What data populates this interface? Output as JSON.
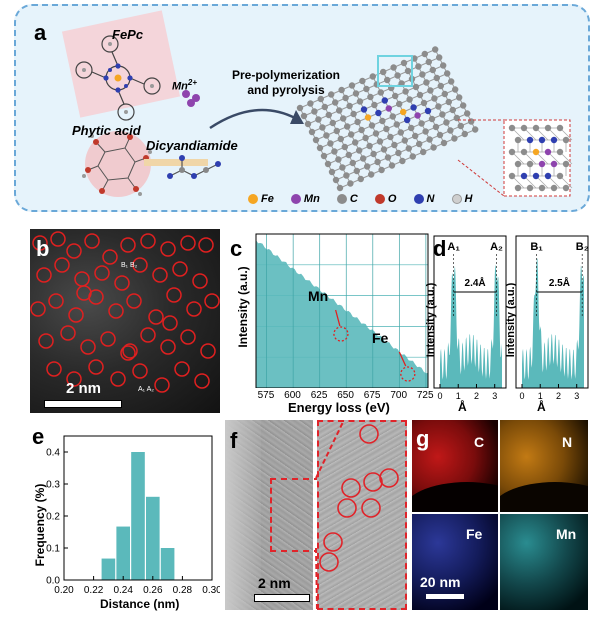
{
  "panel_a": {
    "label": "a",
    "fepc": "FePc",
    "mn": "Mn",
    "mn_sup": "2+",
    "phytic": "Phytic acid",
    "dicy": "Dicyandiamide",
    "process": "Pre-polymerization",
    "process2": "and pyrolysis",
    "legend": [
      {
        "name": "Fe",
        "color": "#f5a623"
      },
      {
        "name": "Mn",
        "color": "#8e44ad"
      },
      {
        "name": "C",
        "color": "#8c8c8c"
      },
      {
        "name": "O",
        "color": "#c0392b"
      },
      {
        "name": "N",
        "color": "#2f3fb0"
      },
      {
        "name": "H",
        "color": "#d9d9d9"
      }
    ]
  },
  "panel_b": {
    "label": "b",
    "scalebar": "2 nm",
    "site_b": "B₁ B₂",
    "site_a": "A₁ A₂"
  },
  "panel_c": {
    "label": "c",
    "ylabel": "Intensity (a.u.)",
    "xlabel": "Energy loss (eV)",
    "mn": "Mn",
    "fe": "Fe"
  },
  "panel_d": {
    "label": "d",
    "ylabel": "Intensity (a.u.)",
    "xlabel": "Å",
    "a1": "A₁",
    "a2": "A₂",
    "b1": "B₁",
    "b2": "B₂",
    "dist_a": "2.4Å",
    "dist_b": "2.5Å"
  },
  "panel_e": {
    "label": "e",
    "ylabel": "Frequency (%)",
    "xlabel": "Distance (nm)"
  },
  "panel_f": {
    "label": "f",
    "scalebar": "2 nm"
  },
  "panel_g": {
    "label": "g",
    "maps": [
      "C",
      "N",
      "Fe",
      "Mn"
    ],
    "scalebar": "20 nm"
  },
  "chart_data": [
    {
      "type": "bar",
      "panel": "e",
      "x": [
        0.23,
        0.24,
        0.25,
        0.26,
        0.27
      ],
      "values": [
        0.067,
        0.167,
        0.4,
        0.26,
        0.1
      ],
      "xlabel": "Distance (nm)",
      "ylabel": "Frequency (%)",
      "xlim": [
        0.2,
        0.3
      ],
      "ylim": [
        0,
        0.45
      ],
      "xticks": [
        "0.20",
        "0.22",
        "0.24",
        "0.26",
        "0.28",
        "0.30"
      ],
      "yticks": [
        "0.0",
        "0.1",
        "0.2",
        "0.3",
        "0.4"
      ],
      "color": "#5bb9bb"
    },
    {
      "type": "area",
      "panel": "c",
      "xlabel": "Energy loss (eV)",
      "ylabel": "Intensity (a.u.)",
      "xlim": [
        565,
        727
      ],
      "xticks": [
        "575",
        "600",
        "625",
        "650",
        "675",
        "700",
        "725"
      ],
      "grid": true,
      "color": "#5bb9bb"
    },
    {
      "type": "area",
      "panel": "d",
      "xlabel": "Å",
      "ylabel": "Intensity (a.u.)",
      "xticks": [
        "0",
        "1",
        "2",
        "3"
      ],
      "color": "#5bb9bb"
    }
  ]
}
